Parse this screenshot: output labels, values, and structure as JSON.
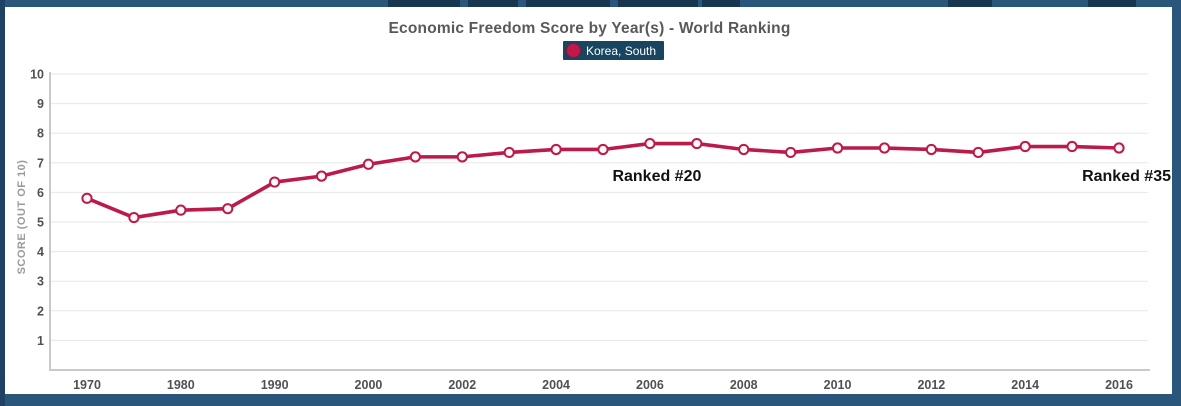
{
  "header": {
    "title": "Economic Freedom Score by Year(s) - World Ranking"
  },
  "legend": {
    "label": "Korea, South",
    "swatch_color": "#C2194B",
    "background": "#184660",
    "text_color": "#FFFFFF"
  },
  "frame": {
    "border_color": "#2A567C",
    "left_border_color": "#1E4164",
    "artifact_color": "#16374F"
  },
  "chart_data": {
    "type": "line",
    "title": "Economic Freedom Score by Year(s) - World Ranking",
    "x": [
      1970,
      1975,
      1980,
      1985,
      1990,
      1995,
      2000,
      2001,
      2002,
      2003,
      2004,
      2005,
      2006,
      2007,
      2008,
      2009,
      2010,
      2011,
      2012,
      2013,
      2014,
      2015,
      2016
    ],
    "series": [
      {
        "name": "Korea, South",
        "color": "#BC1A48",
        "marker_fill": "#FDF8F9",
        "values": [
          5.8,
          5.15,
          5.4,
          5.45,
          6.35,
          6.55,
          6.95,
          7.2,
          7.2,
          7.35,
          7.45,
          7.45,
          7.65,
          7.65,
          7.45,
          7.35,
          7.5,
          7.5,
          7.45,
          7.35,
          7.55,
          7.55,
          7.5
        ]
      }
    ],
    "x_tick_labels": [
      "1970",
      "1980",
      "1990",
      "2000",
      "2002",
      "2004",
      "2006",
      "2008",
      "2010",
      "2012",
      "2014",
      "2016"
    ],
    "y_ticks": [
      1,
      2,
      3,
      4,
      5,
      6,
      7,
      8,
      9,
      10
    ],
    "ylim": [
      0,
      10
    ],
    "xlabel": "",
    "ylabel": "SCORE (OUT OF 10)",
    "grid": true,
    "legend_position": "top-center",
    "grid_color": "#E7E7E7",
    "axis_color": "#C9C9C9",
    "tick_label_color": "#515153",
    "axis_title_color": "#9B9B9D",
    "annotation_color": "#111111",
    "annotations": [
      {
        "text": "Ranked #20",
        "year": 2006,
        "align": "center"
      },
      {
        "text": "Ranked #35",
        "year": 2016,
        "align": "right"
      }
    ]
  }
}
